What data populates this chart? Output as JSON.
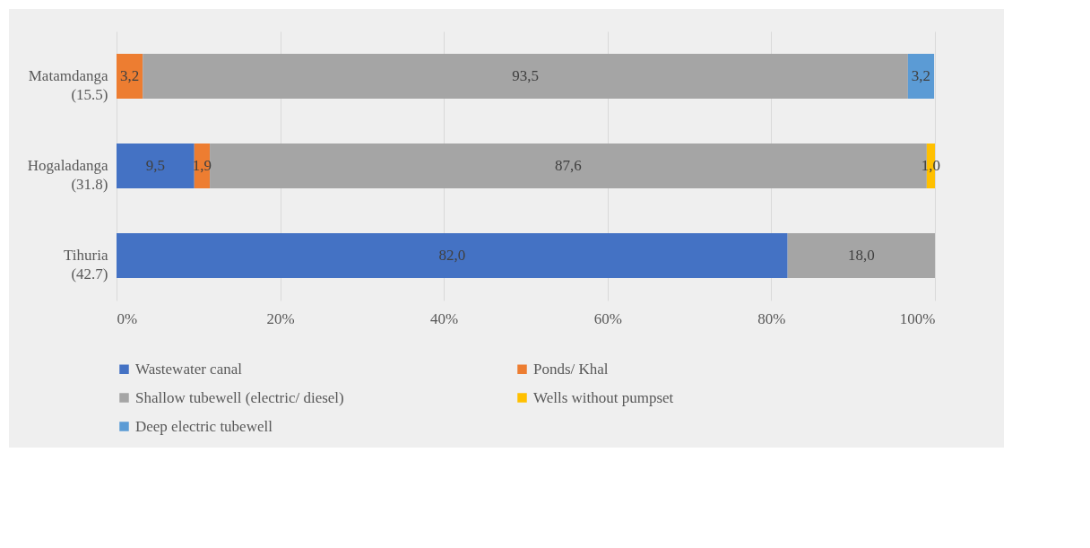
{
  "chart_data": {
    "type": "bar",
    "orientation": "horizontal",
    "stacked": true,
    "categories": [
      "Matamdanga (15.5)",
      "Hogaladanga (31.8)",
      "Tihuria (42.7)"
    ],
    "series": [
      {
        "name": "Wastewater canal",
        "color": "#4472c4",
        "values": [
          null,
          9.5,
          82.0
        ],
        "value_labels": [
          null,
          "9,5",
          "82,0"
        ]
      },
      {
        "name": "Ponds/ Khal",
        "color": "#ed7d31",
        "values": [
          3.2,
          1.9,
          null
        ],
        "value_labels": [
          "3,2",
          "1,9",
          null
        ]
      },
      {
        "name": "Shallow tubewell (electric/ diesel)",
        "color": "#a5a5a5",
        "values": [
          93.5,
          87.6,
          18.0
        ],
        "value_labels": [
          "93,5",
          "87,6",
          "18,0"
        ]
      },
      {
        "name": "Wells without pumpset",
        "color": "#ffc000",
        "values": [
          null,
          1.0,
          null
        ],
        "value_labels": [
          null,
          "1,0",
          null
        ]
      },
      {
        "name": "Deep electric tubewell",
        "color": "#5b9bd5",
        "values": [
          3.2,
          null,
          null
        ],
        "value_labels": [
          "3,2",
          null,
          null
        ]
      }
    ],
    "xlim": [
      0,
      100
    ],
    "xticks": [
      {
        "value": 0,
        "label": "0%"
      },
      {
        "value": 20,
        "label": "20%"
      },
      {
        "value": 40,
        "label": "40%"
      },
      {
        "value": 60,
        "label": "60%"
      },
      {
        "value": 80,
        "label": "80%"
      },
      {
        "value": 100,
        "label": "100%"
      }
    ],
    "grid": "x",
    "legend": "bottom"
  }
}
